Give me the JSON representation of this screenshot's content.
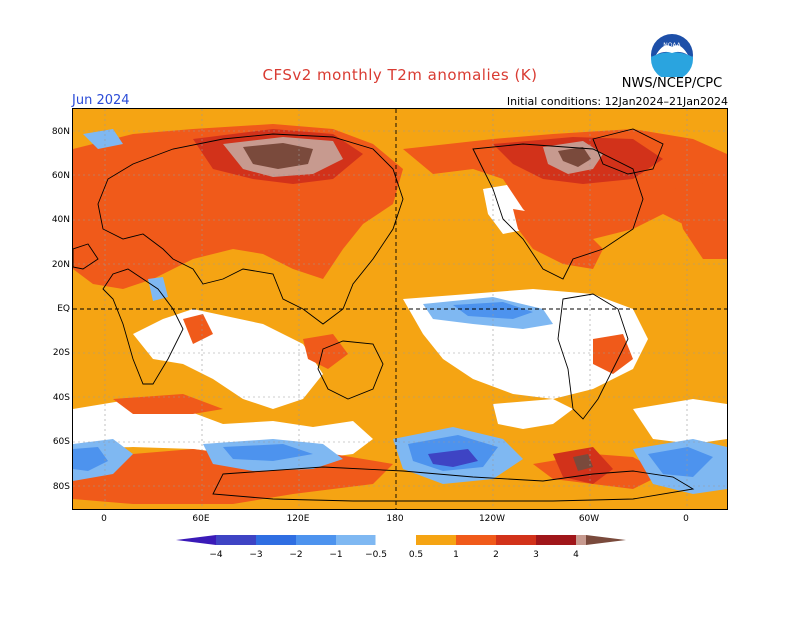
{
  "title": "CFSv2 monthly T2m anomalies (K)",
  "month": "Jun 2024",
  "initial_conditions": "Initial conditions: 12Jan2024–21Jan2024",
  "agency": "NWS/NCEP/CPC",
  "logo_text": "NOAA",
  "lat_labels": [
    "80N",
    "60N",
    "40N",
    "20N",
    "EQ",
    "20S",
    "40S",
    "60S",
    "80S"
  ],
  "lon_labels": [
    "0",
    "60E",
    "120E",
    "180",
    "120W",
    "60W",
    "0"
  ],
  "legend": {
    "labels": [
      "−4",
      "−3",
      "−2",
      "−1",
      "−0.5",
      "0.5",
      "1",
      "2",
      "3",
      "4"
    ],
    "colors": {
      "lt_m4": "#3a1ab8",
      "m4_m3": "#3e44c4",
      "m3_m2": "#2f6ee2",
      "m2_m1": "#4d93ee",
      "m1_m05": "#7fb8f2",
      "neutral": "#ffffff",
      "p05_1": "#f5a413",
      "p1_2": "#f05a1a",
      "p2_3": "#d2321a",
      "p3_4": "#a0161a",
      "gt4": "#c79a8f",
      "gt4_dark": "#7a4a3c"
    }
  }
}
